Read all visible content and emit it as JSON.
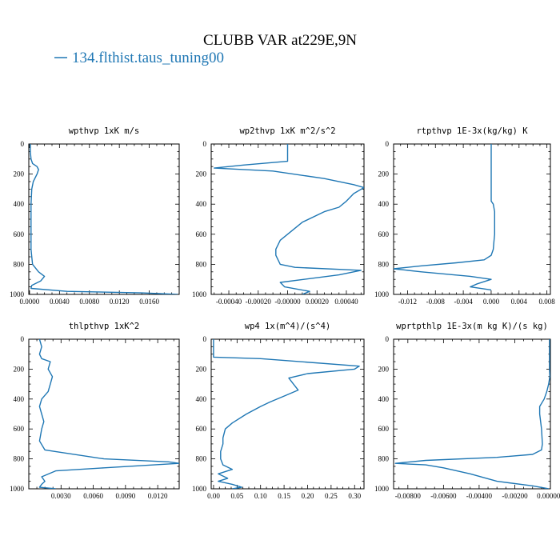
{
  "title": "CLUBB VAR at229E,9N",
  "legend": [
    {
      "label": "134.flthist.taus_tuning00",
      "color": "#1f77b4"
    }
  ],
  "chart_data": [
    {
      "type": "line",
      "title": "wpthvp   1xK m/s",
      "xlim": [
        -0.0001,
        0.02
      ],
      "ylim": [
        1000,
        0
      ],
      "xticks": [
        0.0,
        0.004,
        0.008,
        0.012,
        0.016
      ],
      "xtick_labels": [
        "0.0000",
        "0.0040",
        "0.0080",
        "0.0120",
        "0.0160"
      ],
      "yticks": [
        0,
        200,
        400,
        600,
        800,
        1000
      ],
      "ytick_labels": [
        "0",
        "200",
        "400",
        "600",
        "800",
        "1000"
      ],
      "series": [
        {
          "color": "#1f77b4",
          "x": [
            0.0001,
            0.0001,
            0.0002,
            0.0004,
            0.001,
            0.0012,
            0.001,
            0.0005,
            0.0003,
            0.0002,
            0.0002,
            0.0002,
            0.0002,
            0.0002,
            0.0002,
            0.0003,
            0.0004,
            0.0012,
            0.002,
            0.0015,
            0.0003,
            0.0002,
            0.005,
            0.015,
            0.0198
          ],
          "y": [
            0,
            50,
            100,
            130,
            150,
            170,
            200,
            250,
            300,
            400,
            500,
            550,
            600,
            650,
            700,
            750,
            800,
            850,
            880,
            910,
            940,
            960,
            980,
            990,
            1000
          ]
        }
      ]
    },
    {
      "type": "line",
      "title": "wp2thvp   1xK m^2/s^2",
      "xlim": [
        -0.00052,
        0.00052
      ],
      "ylim": [
        1000,
        0
      ],
      "xticks": [
        -0.0004,
        -0.0002,
        0.0,
        0.0002,
        0.0004
      ],
      "xtick_labels": [
        "-0.00040",
        "-0.00020",
        "-0.00000",
        "0.00020",
        "0.00040"
      ],
      "yticks": [
        0,
        200,
        400,
        600,
        800,
        1000
      ],
      "ytick_labels": [
        "0",
        "200",
        "400",
        "600",
        "800",
        "1000"
      ],
      "series": [
        {
          "color": "#1f77b4",
          "x": [
            -0.0,
            -0.0,
            -0.0,
            -0.0003,
            -0.0005,
            -0.0001,
            0.00025,
            0.00045,
            0.00052,
            0.00045,
            0.0004,
            0.00035,
            0.00025,
            0.0001,
            5e-05,
            0.0,
            -5e-05,
            -8e-05,
            -8e-05,
            -5e-05,
            5e-05,
            0.0005,
            0.00035,
            -5e-05,
            -2e-05,
            0.00015,
            0.0001
          ],
          "y": [
            0,
            60,
            115,
            140,
            160,
            180,
            230,
            270,
            290,
            330,
            380,
            420,
            450,
            520,
            560,
            600,
            640,
            700,
            740,
            800,
            820,
            840,
            870,
            920,
            950,
            980,
            1000
          ]
        }
      ]
    },
    {
      "type": "line",
      "title": "rtpthvp   1E-3x(kg/kg) K",
      "xlim": [
        -0.014,
        0.0085
      ],
      "ylim": [
        1000,
        0
      ],
      "xticks": [
        -0.012,
        -0.008,
        -0.004,
        0.0,
        0.004,
        0.008
      ],
      "xtick_labels": [
        "-0.012",
        "-0.008",
        "-0.004",
        "0.000",
        "0.004",
        "0.008"
      ],
      "yticks": [
        0,
        200,
        400,
        600,
        800,
        1000
      ],
      "ytick_labels": [
        "0",
        "200",
        "400",
        "600",
        "800",
        "1000"
      ],
      "series": [
        {
          "color": "#1f77b4",
          "x": [
            0.0,
            0.0,
            0.0,
            0.0,
            0.0,
            0.0,
            0.0003,
            0.0005,
            0.0005,
            0.0005,
            0.0005,
            0.0004,
            0.0003,
            0.0,
            -0.001,
            -0.005,
            -0.01,
            -0.014,
            -0.01,
            -0.003,
            0.0,
            -0.002,
            -0.003,
            0.0
          ],
          "y": [
            0,
            100,
            200,
            300,
            350,
            380,
            400,
            450,
            500,
            550,
            600,
            650,
            700,
            740,
            770,
            790,
            810,
            830,
            850,
            880,
            900,
            930,
            950,
            970
          ]
        }
      ]
    },
    {
      "type": "line",
      "title": "thlpthvp   1xK^2",
      "xlim": [
        0.0,
        0.014
      ],
      "ylim": [
        1000,
        0
      ],
      "xticks": [
        0.003,
        0.006,
        0.009,
        0.012
      ],
      "xtick_labels": [
        "0.0030",
        "0.0060",
        "0.0090",
        "0.0120"
      ],
      "yticks": [
        0,
        200,
        400,
        600,
        800,
        1000
      ],
      "ytick_labels": [
        "0",
        "200",
        "400",
        "600",
        "800",
        "1000"
      ],
      "series": [
        {
          "color": "#1f77b4",
          "x": [
            0.001,
            0.0012,
            0.001,
            0.0012,
            0.002,
            0.0018,
            0.0022,
            0.002,
            0.0018,
            0.0012,
            0.001,
            0.0012,
            0.0014,
            0.0012,
            0.001,
            0.0015,
            0.007,
            0.013,
            0.014,
            0.007,
            0.0025,
            0.0012,
            0.0015,
            0.0012,
            0.001,
            0.0025
          ],
          "y": [
            0,
            50,
            100,
            130,
            150,
            200,
            250,
            300,
            350,
            400,
            450,
            500,
            550,
            600,
            680,
            740,
            800,
            820,
            830,
            860,
            880,
            920,
            950,
            970,
            990,
            1000
          ]
        }
      ]
    },
    {
      "type": "line",
      "title": "wp4   1x(m^4)/(s^4)",
      "xlim": [
        -0.005,
        0.32
      ],
      "ylim": [
        1000,
        0
      ],
      "xticks": [
        0.0,
        0.05,
        0.1,
        0.15,
        0.2,
        0.25,
        0.3
      ],
      "xtick_labels": [
        "0.00",
        "0.05",
        "0.10",
        "0.15",
        "0.20",
        "0.25",
        "0.30"
      ],
      "yticks": [
        0,
        200,
        400,
        600,
        800,
        1000
      ],
      "ytick_labels": [
        "0",
        "200",
        "400",
        "600",
        "800",
        "1000"
      ],
      "series": [
        {
          "color": "#1f77b4",
          "x": [
            0.0,
            0.0,
            0.0,
            0.1,
            0.31,
            0.3,
            0.2,
            0.16,
            0.17,
            0.18,
            0.15,
            0.12,
            0.1,
            0.07,
            0.04,
            0.025,
            0.02,
            0.02,
            0.015,
            0.015,
            0.02,
            0.04,
            0.01,
            0.03,
            0.01,
            0.04,
            0.06,
            0.04
          ],
          "y": [
            0,
            60,
            120,
            130,
            180,
            200,
            230,
            260,
            300,
            340,
            380,
            420,
            450,
            500,
            560,
            600,
            660,
            700,
            750,
            800,
            840,
            870,
            900,
            930,
            950,
            970,
            990,
            1000
          ]
        }
      ]
    },
    {
      "type": "line",
      "title": "wprtpthlp   1E-3x(m kg K)/(s kg)",
      "xlim": [
        -0.0088,
        0.0
      ],
      "ylim": [
        1000,
        0
      ],
      "xticks": [
        -0.008,
        -0.006,
        -0.004,
        -0.002,
        0.0
      ],
      "xtick_labels": [
        "-0.00800",
        "-0.00600",
        "-0.00400",
        "-0.00200",
        "0.000000"
      ],
      "yticks": [
        0,
        200,
        400,
        600,
        800,
        1000
      ],
      "ytick_labels": [
        "0",
        "200",
        "400",
        "600",
        "800",
        "1000"
      ],
      "series": [
        {
          "color": "#1f77b4",
          "x": [
            -5e-05,
            -5e-05,
            -5e-05,
            -3e-05,
            -0.0001,
            -0.0002,
            -0.00035,
            -0.0006,
            -0.0006,
            -0.0005,
            -0.00045,
            -0.0005,
            -0.001,
            -0.003,
            -0.007,
            -0.0087,
            -0.007,
            -0.006,
            -0.0045,
            -0.003,
            -0.001,
            -0.0001
          ],
          "y": [
            0,
            100,
            200,
            250,
            300,
            350,
            400,
            450,
            500,
            600,
            700,
            740,
            770,
            790,
            810,
            830,
            840,
            860,
            900,
            950,
            980,
            1000
          ]
        }
      ]
    }
  ]
}
